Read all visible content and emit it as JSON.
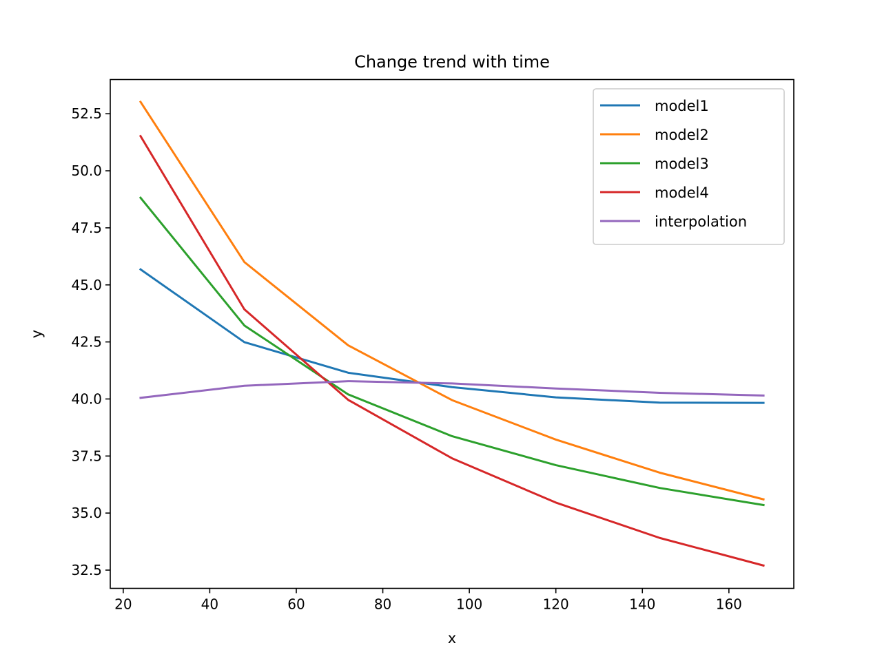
{
  "chart_data": {
    "type": "line",
    "title": "Change trend with time",
    "xlabel": "x",
    "ylabel": "y",
    "xlim": [
      17,
      175
    ],
    "ylim": [
      31.7,
      54.0
    ],
    "xticks": [
      20,
      40,
      60,
      80,
      100,
      120,
      140,
      160
    ],
    "xtick_labels": [
      "20",
      "40",
      "60",
      "80",
      "100",
      "120",
      "140",
      "160"
    ],
    "yticks": [
      32.5,
      35.0,
      37.5,
      40.0,
      42.5,
      45.0,
      47.5,
      50.0,
      52.5
    ],
    "ytick_labels": [
      "32.5",
      "35.0",
      "37.5",
      "40.0",
      "42.5",
      "45.0",
      "47.5",
      "50.0",
      "52.5"
    ],
    "grid": false,
    "legend_position": "top-right",
    "x": [
      24,
      48,
      72,
      96,
      120,
      144,
      168
    ],
    "series": [
      {
        "name": "model1",
        "color": "#1f77b4",
        "values": [
          45.68,
          42.49,
          41.15,
          40.52,
          40.07,
          39.84,
          39.83
        ]
      },
      {
        "name": "model2",
        "color": "#ff7f0e",
        "values": [
          53.02,
          46.0,
          42.35,
          39.95,
          38.22,
          36.77,
          35.6
        ]
      },
      {
        "name": "model3",
        "color": "#2ca02c",
        "values": [
          48.82,
          43.22,
          40.2,
          38.37,
          37.1,
          36.1,
          35.35
        ]
      },
      {
        "name": "model4",
        "color": "#d62728",
        "values": [
          51.52,
          43.93,
          39.96,
          37.4,
          35.46,
          33.91,
          32.7
        ]
      },
      {
        "name": "interpolation",
        "color": "#9467bd",
        "values": [
          40.05,
          40.58,
          40.78,
          40.68,
          40.46,
          40.27,
          40.15
        ]
      }
    ]
  }
}
